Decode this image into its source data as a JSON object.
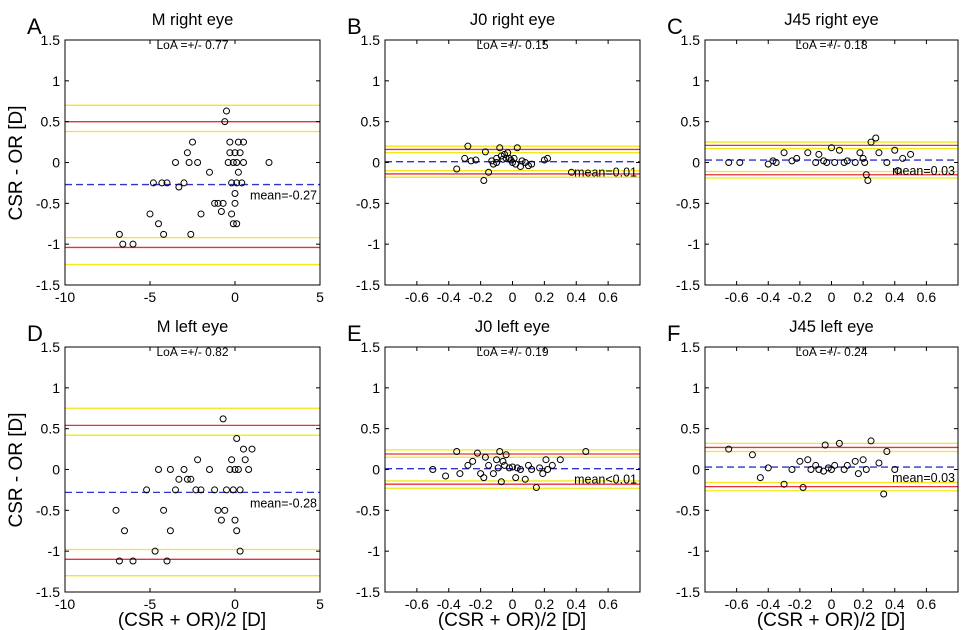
{
  "figure": {
    "shared_ylabel": "CSR - OR [D]",
    "shared_xlabel": "(CSR + OR)/2 [D]",
    "line_colors": {
      "limits_of_agreement": "#e8303a",
      "confidence_band": "#f2e81a",
      "mean": "#3333cc",
      "markers": "#000000"
    }
  },
  "chart_data": [
    {
      "panel": "A",
      "type": "scatter",
      "title": "M right eye",
      "subtitle": "LoA =+/- 0.77",
      "xlim": [
        -10,
        5
      ],
      "ylim": [
        -1.5,
        1.5
      ],
      "xticks": [
        "-10",
        "-5",
        "0",
        "5"
      ],
      "yticks": [
        "-1.5",
        "-1",
        "-0.5",
        "0",
        "0.5",
        "1",
        "1.5"
      ],
      "mean": -0.27,
      "mean_label": "mean=-0.27",
      "loa_upper": 0.5,
      "loa_lower": -1.04,
      "ci_upper": [
        0.38,
        0.7
      ],
      "ci_lower": [
        -1.25,
        -0.92
      ],
      "points": [
        [
          -6.8,
          -0.88
        ],
        [
          -6.6,
          -1.0
        ],
        [
          -6.0,
          -1.0
        ],
        [
          -5.0,
          -0.63
        ],
        [
          -4.8,
          -0.25
        ],
        [
          -4.5,
          -0.75
        ],
        [
          -4.3,
          -0.25
        ],
        [
          -4.2,
          -0.88
        ],
        [
          -4.0,
          -0.25
        ],
        [
          -3.5,
          0.0
        ],
        [
          -3.3,
          -0.3
        ],
        [
          -3.0,
          -0.25
        ],
        [
          -2.8,
          0.12
        ],
        [
          -2.7,
          0.0
        ],
        [
          -2.6,
          -0.88
        ],
        [
          -2.5,
          0.25
        ],
        [
          -2.2,
          0.0
        ],
        [
          -2.0,
          -0.63
        ],
        [
          -1.5,
          -0.12
        ],
        [
          -1.2,
          -0.5
        ],
        [
          -1.0,
          -0.5
        ],
        [
          -0.8,
          -0.6
        ],
        [
          -0.7,
          -0.5
        ],
        [
          -0.6,
          0.5
        ],
        [
          -0.5,
          0.63
        ],
        [
          -0.4,
          0.0
        ],
        [
          -0.3,
          0.12
        ],
        [
          -0.3,
          0.25
        ],
        [
          -0.2,
          -0.25
        ],
        [
          -0.2,
          -0.63
        ],
        [
          -0.1,
          0.0
        ],
        [
          -0.1,
          -0.75
        ],
        [
          0.0,
          0.12
        ],
        [
          0.0,
          -0.38
        ],
        [
          0.0,
          -0.5
        ],
        [
          0.1,
          0.0
        ],
        [
          0.1,
          -0.25
        ],
        [
          0.1,
          -0.75
        ],
        [
          0.2,
          0.25
        ],
        [
          0.2,
          -0.12
        ],
        [
          0.3,
          0.12
        ],
        [
          0.4,
          -0.25
        ],
        [
          0.5,
          0.0
        ],
        [
          0.5,
          0.25
        ],
        [
          2.0,
          0.0
        ]
      ]
    },
    {
      "panel": "B",
      "type": "scatter",
      "title": "J0 right eye",
      "subtitle": "LoA =+/- 0.15",
      "xlim": [
        -0.8,
        0.8
      ],
      "ylim": [
        -1.5,
        1.5
      ],
      "xticks": [
        "-0.6",
        "-0.4",
        "-0.2",
        "0",
        "0.2",
        "0.4",
        "0.6"
      ],
      "yticks": [
        "-1.5",
        "-1",
        "-0.5",
        "0",
        "0.5",
        "1",
        "1.5"
      ],
      "mean": 0.01,
      "mean_label": "mean=0.01",
      "loa_upper": 0.16,
      "loa_lower": -0.14,
      "ci_upper": [
        0.12,
        0.2
      ],
      "ci_lower": [
        -0.18,
        -0.1
      ],
      "points": [
        [
          -0.35,
          -0.08
        ],
        [
          -0.3,
          0.05
        ],
        [
          -0.28,
          0.2
        ],
        [
          -0.26,
          0.02
        ],
        [
          -0.23,
          0.03
        ],
        [
          -0.18,
          -0.22
        ],
        [
          -0.17,
          0.13
        ],
        [
          -0.15,
          -0.12
        ],
        [
          -0.13,
          0.02
        ],
        [
          -0.12,
          -0.02
        ],
        [
          -0.1,
          0.05
        ],
        [
          -0.1,
          0.0
        ],
        [
          -0.08,
          0.18
        ],
        [
          -0.07,
          0.08
        ],
        [
          -0.06,
          0.04
        ],
        [
          -0.05,
          0.1
        ],
        [
          -0.04,
          0.05
        ],
        [
          -0.03,
          0.12
        ],
        [
          -0.02,
          0.05
        ],
        [
          -0.01,
          0.03
        ],
        [
          0.0,
          0.0
        ],
        [
          0.01,
          0.05
        ],
        [
          0.02,
          -0.02
        ],
        [
          0.03,
          0.18
        ],
        [
          0.05,
          -0.05
        ],
        [
          0.06,
          0.02
        ],
        [
          0.08,
          0.0
        ],
        [
          0.1,
          -0.04
        ],
        [
          0.12,
          -0.02
        ],
        [
          0.2,
          0.03
        ],
        [
          0.22,
          0.05
        ],
        [
          0.37,
          -0.12
        ]
      ]
    },
    {
      "panel": "C",
      "type": "scatter",
      "title": "J45 right eye",
      "subtitle": "LoA =+/- 0.18",
      "xlim": [
        -0.8,
        0.8
      ],
      "ylim": [
        -1.5,
        1.5
      ],
      "xticks": [
        "-0.6",
        "-0.4",
        "-0.2",
        "0",
        "0.2",
        "0.4",
        "0.6"
      ],
      "yticks": [
        "-1.5",
        "-1",
        "-0.5",
        "0",
        "0.5",
        "1",
        "1.5"
      ],
      "mean": 0.03,
      "mean_label": "mean=0.03",
      "loa_upper": 0.21,
      "loa_lower": -0.15,
      "ci_upper": [
        0.17,
        0.25
      ],
      "ci_lower": [
        -0.19,
        -0.11
      ],
      "points": [
        [
          -0.65,
          0.0
        ],
        [
          -0.58,
          0.0
        ],
        [
          -0.4,
          -0.02
        ],
        [
          -0.37,
          0.02
        ],
        [
          -0.35,
          0.0
        ],
        [
          -0.3,
          0.12
        ],
        [
          -0.25,
          0.02
        ],
        [
          -0.22,
          0.05
        ],
        [
          -0.15,
          0.12
        ],
        [
          -0.1,
          0.0
        ],
        [
          -0.08,
          0.1
        ],
        [
          -0.05,
          0.02
        ],
        [
          -0.03,
          0.0
        ],
        [
          0.0,
          0.18
        ],
        [
          0.02,
          0.0
        ],
        [
          0.05,
          0.15
        ],
        [
          0.08,
          0.0
        ],
        [
          0.1,
          0.02
        ],
        [
          0.15,
          0.0
        ],
        [
          0.18,
          0.12
        ],
        [
          0.2,
          0.05
        ],
        [
          0.21,
          0.0
        ],
        [
          0.22,
          -0.15
        ],
        [
          0.23,
          -0.22
        ],
        [
          0.25,
          0.25
        ],
        [
          0.28,
          0.3
        ],
        [
          0.3,
          0.12
        ],
        [
          0.35,
          0.0
        ],
        [
          0.4,
          0.15
        ],
        [
          0.42,
          -0.1
        ],
        [
          0.45,
          0.05
        ],
        [
          0.5,
          0.1
        ]
      ]
    },
    {
      "panel": "D",
      "type": "scatter",
      "title": "M left eye",
      "subtitle": "LoA =+/- 0.82",
      "xlim": [
        -10,
        5
      ],
      "ylim": [
        -1.5,
        1.5
      ],
      "xticks": [
        "-10",
        "-5",
        "0",
        "5"
      ],
      "yticks": [
        "-1.5",
        "-1",
        "-0.5",
        "0",
        "0.5",
        "1",
        "1.5"
      ],
      "mean": -0.28,
      "mean_label": "mean=-0.28",
      "loa_upper": 0.54,
      "loa_lower": -1.1,
      "ci_upper": [
        0.42,
        0.75
      ],
      "ci_lower": [
        -1.3,
        -0.98
      ],
      "points": [
        [
          -7.0,
          -0.5
        ],
        [
          -6.8,
          -1.12
        ],
        [
          -6.5,
          -0.75
        ],
        [
          -6.0,
          -1.12
        ],
        [
          -5.2,
          -0.25
        ],
        [
          -4.7,
          -1.0
        ],
        [
          -4.5,
          0.0
        ],
        [
          -4.2,
          -0.5
        ],
        [
          -4.0,
          -1.12
        ],
        [
          -3.8,
          -0.75
        ],
        [
          -3.8,
          0.0
        ],
        [
          -3.5,
          -0.25
        ],
        [
          -3.3,
          -0.12
        ],
        [
          -3.0,
          0.0
        ],
        [
          -2.8,
          -0.12
        ],
        [
          -2.6,
          -0.12
        ],
        [
          -2.3,
          -0.25
        ],
        [
          -2.2,
          0.12
        ],
        [
          -2.0,
          -0.25
        ],
        [
          -1.5,
          0.0
        ],
        [
          -1.2,
          -0.25
        ],
        [
          -1.0,
          -0.5
        ],
        [
          -0.8,
          -0.62
        ],
        [
          -0.7,
          0.62
        ],
        [
          -0.6,
          -0.5
        ],
        [
          -0.5,
          -0.25
        ],
        [
          -0.3,
          0.0
        ],
        [
          -0.2,
          0.12
        ],
        [
          -0.1,
          -0.25
        ],
        [
          0.0,
          0.0
        ],
        [
          0.0,
          -0.62
        ],
        [
          0.1,
          0.38
        ],
        [
          0.1,
          -0.75
        ],
        [
          0.2,
          0.0
        ],
        [
          0.3,
          -1.0
        ],
        [
          0.3,
          -0.25
        ],
        [
          0.5,
          0.25
        ],
        [
          0.6,
          0.12
        ],
        [
          0.8,
          0.0
        ],
        [
          1.0,
          0.25
        ]
      ]
    },
    {
      "panel": "E",
      "type": "scatter",
      "title": "J0 left eye",
      "subtitle": "LoA =+/- 0.19",
      "xlim": [
        -0.8,
        0.8
      ],
      "ylim": [
        -1.5,
        1.5
      ],
      "xticks": [
        "-0.6",
        "-0.4",
        "-0.2",
        "0",
        "0.2",
        "0.4",
        "0.6"
      ],
      "yticks": [
        "-1.5",
        "-1",
        "-0.5",
        "0",
        "0.5",
        "1",
        "1.5"
      ],
      "mean": 0.01,
      "mean_label": "mean<0.01",
      "loa_upper": 0.19,
      "loa_lower": -0.18,
      "ci_upper": [
        0.15,
        0.24
      ],
      "ci_lower": [
        -0.23,
        -0.14
      ],
      "points": [
        [
          -0.5,
          0.0
        ],
        [
          -0.42,
          -0.08
        ],
        [
          -0.35,
          0.22
        ],
        [
          -0.33,
          -0.05
        ],
        [
          -0.28,
          0.05
        ],
        [
          -0.25,
          0.1
        ],
        [
          -0.22,
          0.2
        ],
        [
          -0.2,
          -0.05
        ],
        [
          -0.18,
          -0.1
        ],
        [
          -0.17,
          0.15
        ],
        [
          -0.15,
          0.05
        ],
        [
          -0.12,
          -0.05
        ],
        [
          -0.1,
          0.12
        ],
        [
          -0.09,
          0.02
        ],
        [
          -0.08,
          0.22
        ],
        [
          -0.07,
          -0.15
        ],
        [
          -0.06,
          0.1
        ],
        [
          -0.05,
          0.05
        ],
        [
          -0.04,
          0.18
        ],
        [
          -0.02,
          0.02
        ],
        [
          0.0,
          0.03
        ],
        [
          0.02,
          -0.1
        ],
        [
          0.03,
          0.02
        ],
        [
          0.05,
          0.0
        ],
        [
          0.08,
          -0.12
        ],
        [
          0.1,
          0.05
        ],
        [
          0.12,
          0.0
        ],
        [
          0.15,
          -0.22
        ],
        [
          0.17,
          0.02
        ],
        [
          0.19,
          -0.05
        ],
        [
          0.21,
          0.12
        ],
        [
          0.22,
          0.0
        ],
        [
          0.25,
          0.05
        ],
        [
          0.3,
          0.12
        ],
        [
          0.46,
          0.22
        ]
      ]
    },
    {
      "panel": "F",
      "type": "scatter",
      "title": "J45 left eye",
      "subtitle": "LoA =+/- 0.24",
      "xlim": [
        -0.8,
        0.8
      ],
      "ylim": [
        -1.5,
        1.5
      ],
      "xticks": [
        "-0.6",
        "-0.4",
        "-0.2",
        "0",
        "0.2",
        "0.4",
        "0.6"
      ],
      "yticks": [
        "-1.5",
        "-1",
        "-0.5",
        "0",
        "0.5",
        "1",
        "1.5"
      ],
      "mean": 0.03,
      "mean_label": "mean=0.03",
      "loa_upper": 0.27,
      "loa_lower": -0.21,
      "ci_upper": [
        0.22,
        0.32
      ],
      "ci_lower": [
        -0.26,
        -0.16
      ],
      "points": [
        [
          -0.65,
          0.25
        ],
        [
          -0.5,
          0.18
        ],
        [
          -0.45,
          -0.1
        ],
        [
          -0.4,
          0.02
        ],
        [
          -0.3,
          -0.18
        ],
        [
          -0.25,
          0.0
        ],
        [
          -0.2,
          0.1
        ],
        [
          -0.18,
          -0.22
        ],
        [
          -0.15,
          0.12
        ],
        [
          -0.13,
          0.0
        ],
        [
          -0.1,
          0.05
        ],
        [
          -0.08,
          0.0
        ],
        [
          -0.05,
          -0.02
        ],
        [
          -0.04,
          0.3
        ],
        [
          -0.02,
          0.02
        ],
        [
          0.0,
          0.0
        ],
        [
          0.02,
          0.05
        ],
        [
          0.05,
          0.32
        ],
        [
          0.08,
          0.0
        ],
        [
          0.1,
          0.05
        ],
        [
          0.15,
          0.1
        ],
        [
          0.17,
          -0.05
        ],
        [
          0.2,
          0.12
        ],
        [
          0.22,
          0.0
        ],
        [
          0.25,
          0.35
        ],
        [
          0.3,
          0.08
        ],
        [
          0.33,
          -0.3
        ],
        [
          0.35,
          0.22
        ],
        [
          0.4,
          0.0
        ]
      ]
    }
  ]
}
